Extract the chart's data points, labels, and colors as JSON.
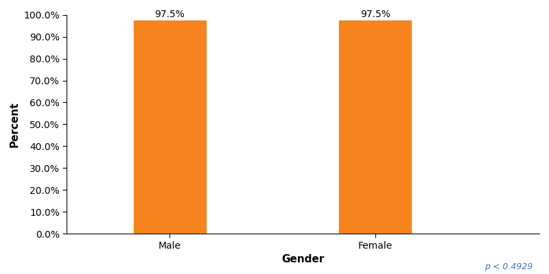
{
  "categories": [
    "Male",
    "Female"
  ],
  "values": [
    97.5,
    97.5
  ],
  "bar_color": "#F5841F",
  "bar_width": 0.35,
  "xlabel": "Gender",
  "ylabel": "Percent",
  "ylim": [
    0,
    100
  ],
  "yticks": [
    0,
    10,
    20,
    30,
    40,
    50,
    60,
    70,
    80,
    90,
    100
  ],
  "ytick_labels": [
    "0.0%",
    "10.0%",
    "20.0%",
    "30.0%",
    "40.0%",
    "50.0%",
    "60.0%",
    "70.0%",
    "80.0%",
    "90.0%",
    "100.0%"
  ],
  "bar_labels": [
    "97.5%",
    "97.5%"
  ],
  "p_value_text": "p < 0.4929",
  "xlabel_fontsize": 11,
  "ylabel_fontsize": 11,
  "tick_fontsize": 10,
  "bar_label_fontsize": 10,
  "p_value_fontsize": 9,
  "background_color": "#ffffff",
  "x_positions": [
    1,
    2
  ],
  "xlim": [
    0.5,
    2.8
  ]
}
